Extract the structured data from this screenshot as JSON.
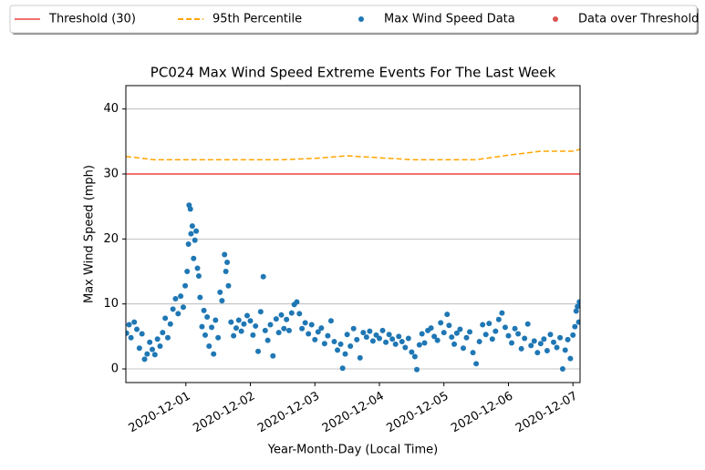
{
  "chart_data": {
    "type": "scatter",
    "title": "PC024 Max Wind Speed Extreme Events For The Last Week",
    "x_label": "Year-Month-Day (Local Time)",
    "y_label": "Max Wind Speed (mph)",
    "xlim": [
      -0.93,
      6.11
    ],
    "ylim": [
      -2.1,
      43.6
    ],
    "xticks": [
      {
        "value": 0,
        "label": "2020-12-01"
      },
      {
        "value": 1,
        "label": "2020-12-02"
      },
      {
        "value": 2,
        "label": "2020-12-03"
      },
      {
        "value": 3,
        "label": "2020-12-04"
      },
      {
        "value": 4,
        "label": "2020-12-05"
      },
      {
        "value": 5,
        "label": "2020-12-06"
      },
      {
        "value": 6,
        "label": "2020-12-07"
      }
    ],
    "yticks": [
      0,
      10,
      20,
      30,
      40
    ],
    "grid": "y",
    "series": [
      {
        "name": "Threshold (30)",
        "style": "line",
        "color": "#f07070",
        "x": [
          -0.93,
          6.11
        ],
        "values": [
          30,
          30
        ]
      },
      {
        "name": "95th Percentile",
        "style": "dashed",
        "color": "#ffa500",
        "x": [
          -0.93,
          -0.5,
          0,
          0.5,
          1,
          1.5,
          2,
          2.5,
          3,
          3.5,
          4,
          4.5,
          5,
          5.5,
          6,
          6.11
        ],
        "values": [
          32.7,
          32.2,
          32.2,
          32.2,
          32.2,
          32.2,
          32.4,
          32.8,
          32.5,
          32.2,
          32.2,
          32.2,
          32.9,
          33.5,
          33.5,
          33.8
        ]
      },
      {
        "name": "Max Wind Speed Data",
        "style": "points",
        "color": "#1f77b4",
        "x": [
          -0.92,
          -0.88,
          -0.85,
          -0.8,
          -0.76,
          -0.72,
          -0.68,
          -0.64,
          -0.6,
          -0.56,
          -0.52,
          -0.48,
          -0.44,
          -0.4,
          -0.36,
          -0.32,
          -0.28,
          -0.24,
          -0.2,
          -0.16,
          -0.12,
          -0.08,
          -0.04,
          -0.01,
          0.02,
          0.04,
          0.05,
          0.07,
          0.08,
          0.1,
          0.12,
          0.14,
          0.16,
          0.18,
          0.2,
          0.22,
          0.25,
          0.28,
          0.3,
          0.33,
          0.36,
          0.4,
          0.43,
          0.46,
          0.5,
          0.53,
          0.56,
          0.6,
          0.62,
          0.64,
          0.66,
          0.7,
          0.74,
          0.78,
          0.82,
          0.86,
          0.9,
          0.95,
          1.0,
          1.04,
          1.08,
          1.12,
          1.16,
          1.2,
          1.23,
          1.27,
          1.31,
          1.35,
          1.4,
          1.44,
          1.48,
          1.52,
          1.56,
          1.6,
          1.64,
          1.68,
          1.72,
          1.76,
          1.8,
          1.85,
          1.9,
          1.95,
          2.0,
          2.05,
          2.1,
          2.15,
          2.2,
          2.25,
          2.3,
          2.35,
          2.4,
          2.43,
          2.47,
          2.5,
          2.55,
          2.6,
          2.65,
          2.7,
          2.75,
          2.8,
          2.85,
          2.9,
          2.95,
          3.0,
          3.05,
          3.1,
          3.15,
          3.2,
          3.25,
          3.3,
          3.35,
          3.4,
          3.45,
          3.5,
          3.55,
          3.58,
          3.62,
          3.66,
          3.7,
          3.75,
          3.8,
          3.85,
          3.9,
          3.95,
          4.0,
          4.05,
          4.08,
          4.12,
          4.16,
          4.2,
          4.25,
          4.3,
          4.35,
          4.4,
          4.45,
          4.5,
          4.55,
          4.6,
          4.65,
          4.7,
          4.75,
          4.8,
          4.85,
          4.9,
          4.95,
          5.0,
          5.05,
          5.1,
          5.15,
          5.2,
          5.25,
          5.3,
          5.35,
          5.4,
          5.45,
          5.5,
          5.55,
          5.6,
          5.65,
          5.7,
          5.75,
          5.8,
          5.84,
          5.88,
          5.92,
          5.96,
          6.0,
          6.03,
          6.05,
          6.07,
          6.09,
          6.1
        ],
        "values": [
          5.5,
          6.8,
          4.8,
          7.2,
          6.1,
          3.2,
          5.4,
          1.5,
          2.3,
          4.1,
          3.0,
          2.2,
          4.6,
          3.5,
          5.6,
          7.8,
          4.8,
          6.9,
          9.2,
          10.8,
          8.5,
          11.2,
          9.5,
          12.8,
          15.0,
          19.2,
          25.2,
          24.6,
          20.8,
          22.0,
          17.0,
          19.8,
          21.2,
          15.5,
          14.3,
          11.0,
          6.5,
          9.0,
          5.2,
          8.0,
          3.5,
          6.4,
          2.3,
          7.5,
          4.8,
          11.8,
          10.5,
          17.6,
          15.0,
          16.4,
          12.8,
          7.2,
          5.1,
          6.3,
          7.5,
          5.8,
          6.9,
          8.2,
          7.4,
          5.2,
          6.6,
          2.7,
          8.8,
          14.2,
          5.9,
          4.4,
          6.8,
          2.0,
          7.7,
          5.6,
          8.3,
          6.2,
          7.6,
          5.9,
          8.6,
          9.9,
          10.3,
          8.5,
          6.2,
          7.1,
          5.4,
          6.8,
          4.5,
          5.7,
          6.3,
          3.9,
          5.1,
          7.4,
          4.2,
          2.9,
          3.8,
          0.1,
          2.3,
          5.3,
          3.5,
          6.2,
          4.5,
          1.7,
          5.6,
          4.9,
          5.8,
          4.3,
          5.2,
          4.7,
          5.9,
          4.1,
          5.3,
          4.6,
          3.8,
          5.0,
          4.2,
          3.3,
          4.7,
          2.6,
          1.9,
          -0.1,
          3.7,
          5.4,
          4.0,
          5.9,
          6.3,
          5.0,
          4.4,
          7.1,
          5.6,
          8.4,
          6.7,
          4.9,
          3.8,
          5.5,
          6.1,
          3.2,
          4.8,
          5.7,
          2.5,
          0.8,
          4.2,
          6.8,
          5.3,
          7.0,
          4.6,
          5.8,
          7.6,
          8.6,
          6.4,
          5.1,
          4.0,
          6.2,
          5.4,
          3.1,
          4.7,
          6.9,
          3.6,
          4.3,
          2.5,
          3.9,
          4.6,
          2.8,
          5.3,
          4.1,
          3.3,
          4.8,
          0.0,
          2.9,
          4.5,
          1.6,
          5.2,
          6.5,
          8.9,
          9.6,
          7.2,
          10.3
        ]
      },
      {
        "name": "Data over Threshold",
        "style": "points",
        "color": "#d9534f",
        "x": [],
        "values": []
      }
    ]
  }
}
